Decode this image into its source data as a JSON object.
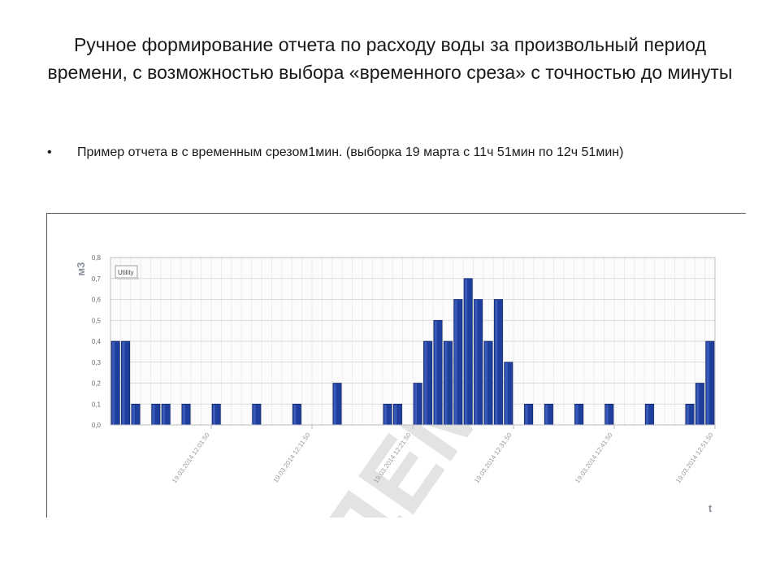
{
  "slide": {
    "title": "Ручное формирование отчета по расходу воды за произвольный период времени, с возможностью выбора «временного среза» с точностью до минуты",
    "bullet_symbol": "•",
    "bullet_text": "Пример отчета в с временным  срезом1мин.  (выборка 19 марта с 11ч 51мин по 12ч 51мин)"
  },
  "chart_data": {
    "type": "bar",
    "ylabel": "м3",
    "xlabel": "t",
    "ylim": [
      0,
      0.8
    ],
    "y_ticks": [
      "0,0",
      "0,1",
      "0,2",
      "0,3",
      "0,4",
      "0,5",
      "0,6",
      "0,7",
      "0,8"
    ],
    "legend": [
      "Utility"
    ],
    "legend_position": "top-left",
    "grid": true,
    "watermark": "ДЕМО",
    "x_tick_labels": [
      "19.03.2014 12:01:50",
      "19.03.2014 12:11:50",
      "19.03.2014 12:21:50",
      "19.03.2014 12:31:50",
      "19.03.2014 12:41:50",
      "19.03.2014 12:51:50"
    ],
    "x_tick_minutes": [
      10,
      20,
      30,
      40,
      50,
      60
    ],
    "series": [
      {
        "name": "Utility",
        "color": "#1f3f9e",
        "values": [
          0.4,
          0.4,
          0.1,
          0,
          0.1,
          0.1,
          0,
          0.1,
          0,
          0,
          0.1,
          0,
          0,
          0,
          0.1,
          0,
          0,
          0,
          0.1,
          0,
          0,
          0,
          0.2,
          0,
          0,
          0,
          0,
          0.1,
          0.1,
          0,
          0.2,
          0.4,
          0.5,
          0.4,
          0.6,
          0.7,
          0.6,
          0.4,
          0.6,
          0.3,
          0,
          0.1,
          0,
          0.1,
          0,
          0,
          0.1,
          0,
          0,
          0.1,
          0,
          0,
          0,
          0.1,
          0,
          0,
          0,
          0.1,
          0.2,
          0.4
        ]
      }
    ]
  }
}
